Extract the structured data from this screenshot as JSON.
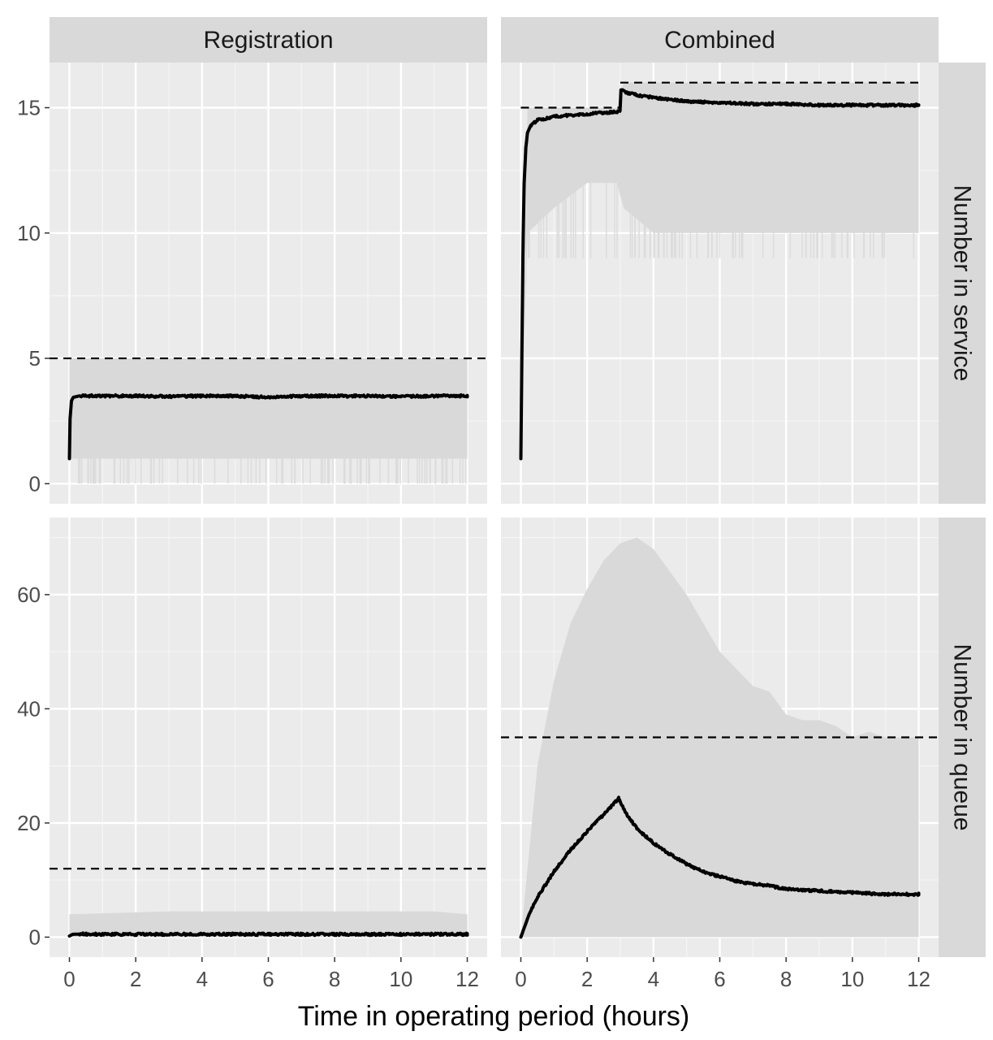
{
  "chart_data": {
    "type": "line",
    "layout": "2x2 facet grid",
    "xlabel": "Time in operating period (hours)",
    "ylabel": "",
    "xlim": [
      -0.6,
      12.6
    ],
    "x_ticks": [
      0,
      2,
      4,
      6,
      8,
      10,
      12
    ],
    "grid": true,
    "columns": [
      "Registration",
      "Combined"
    ],
    "rows": [
      "Number in service",
      "Number in queue"
    ],
    "row_settings": [
      {
        "ylim": [
          -0.8,
          16.8
        ],
        "y_ticks": [
          0,
          5,
          10,
          15
        ]
      },
      {
        "ylim": [
          -3.5,
          73.5
        ],
        "y_ticks": [
          0,
          20,
          40,
          60
        ]
      }
    ],
    "panels": [
      {
        "row": 0,
        "col": 0,
        "mean_x": [
          0,
          0.02,
          0.06,
          0.12,
          0.3,
          1,
          2,
          3,
          4,
          5,
          6,
          7,
          8,
          9,
          10,
          11,
          12
        ],
        "mean_y": [
          1,
          2.6,
          3.3,
          3.45,
          3.5,
          3.5,
          3.5,
          3.48,
          3.5,
          3.5,
          3.45,
          3.5,
          3.5,
          3.5,
          3.48,
          3.5,
          3.5
        ],
        "band_x": [
          0,
          12
        ],
        "band_upper": [
          5,
          5
        ],
        "band_lower": [
          1,
          1
        ],
        "min_spike_level": 0,
        "reference_line": 5
      },
      {
        "row": 0,
        "col": 1,
        "mean_x": [
          0,
          0.03,
          0.06,
          0.1,
          0.15,
          0.2,
          0.3,
          0.5,
          1,
          1.5,
          2,
          2.5,
          2.99,
          3.02,
          3.2,
          3.5,
          4,
          5,
          6,
          7,
          8,
          9,
          10,
          11,
          12
        ],
        "mean_y": [
          1,
          5,
          9,
          12,
          13.4,
          14,
          14.3,
          14.5,
          14.65,
          14.7,
          14.75,
          14.8,
          14.85,
          15.7,
          15.6,
          15.5,
          15.4,
          15.25,
          15.2,
          15.15,
          15.15,
          15.1,
          15.1,
          15.1,
          15.1
        ],
        "band_x": [
          0,
          0.2,
          1.0,
          2.0,
          2.9,
          3.1,
          4.0,
          5.0,
          6.0,
          8.0,
          10.0,
          12.0
        ],
        "band_upper": [
          1,
          15,
          15,
          15,
          15,
          16,
          16,
          16,
          16,
          16,
          16,
          16
        ],
        "band_lower": [
          1,
          10,
          11,
          12,
          12,
          11,
          10,
          10,
          10,
          10,
          10,
          10
        ],
        "min_spike_level": 9,
        "reference_steps": [
          {
            "from": 0,
            "to": 3,
            "value": 15
          },
          {
            "from": 3,
            "to": 12,
            "value": 16
          }
        ]
      },
      {
        "row": 1,
        "col": 0,
        "mean_x": [
          0,
          0.1,
          0.5,
          1,
          2,
          4,
          6,
          8,
          10,
          12
        ],
        "mean_y": [
          0.2,
          0.5,
          0.55,
          0.5,
          0.5,
          0.5,
          0.5,
          0.5,
          0.5,
          0.5
        ],
        "band_x": [
          0,
          3,
          11,
          12
        ],
        "band_upper": [
          4,
          4.5,
          4.5,
          4
        ],
        "band_lower": [
          0,
          0,
          0,
          0
        ],
        "reference_line": 12
      },
      {
        "row": 1,
        "col": 1,
        "mean_x": [
          0,
          0.25,
          0.5,
          1,
          1.5,
          2,
          2.5,
          2.95,
          3.2,
          3.5,
          4,
          4.5,
          5,
          5.5,
          6,
          6.5,
          7,
          7.5,
          8,
          9,
          10,
          11,
          12
        ],
        "mean_y": [
          0,
          4,
          7,
          11.5,
          15.3,
          18.5,
          21.5,
          24.3,
          21.5,
          19,
          16.5,
          14.5,
          12.8,
          11.5,
          10.6,
          9.8,
          9.3,
          9,
          8.4,
          8.1,
          7.8,
          7.5,
          7.5
        ],
        "band_x": [
          0,
          0.5,
          1,
          1.5,
          2,
          2.5,
          3,
          3.5,
          4,
          4.5,
          5,
          5.5,
          6,
          6.5,
          7,
          7.5,
          8,
          8.5,
          9,
          9.5,
          10,
          10.5,
          11,
          11.5,
          12
        ],
        "band_upper": [
          0,
          30,
          45,
          55,
          61,
          66,
          69,
          70,
          68,
          64,
          60,
          55,
          50,
          47,
          44,
          43,
          39,
          38,
          38,
          37,
          35,
          36,
          35,
          35,
          35
        ],
        "band_lower": [
          0,
          0,
          0,
          0,
          0,
          0,
          0,
          0,
          0,
          0,
          0,
          0,
          0,
          0,
          0,
          0,
          0,
          0,
          0,
          0,
          0,
          0,
          0,
          0,
          0
        ],
        "reference_line": 35
      }
    ]
  }
}
